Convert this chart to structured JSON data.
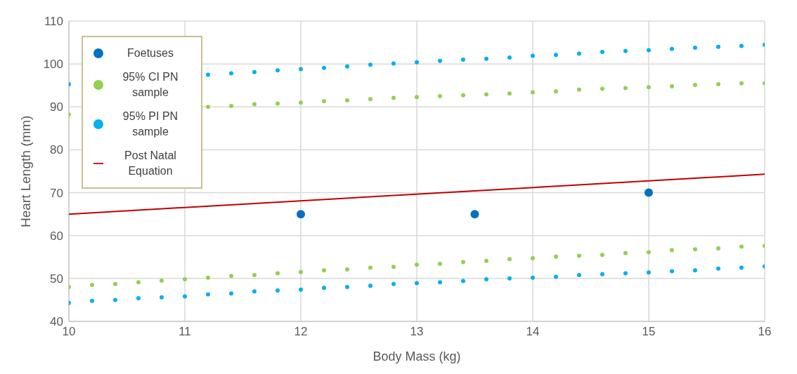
{
  "chart_data": {
    "type": "scatter",
    "xlabel": "Body Mass (kg)",
    "ylabel": "Heart Length (mm)",
    "xlim": [
      10,
      16
    ],
    "xticks": [
      10,
      11,
      12,
      13,
      14,
      15,
      16
    ],
    "ylim": [
      40,
      110
    ],
    "yticks": [
      40,
      50,
      60,
      70,
      80,
      90,
      100,
      110
    ],
    "grid": true,
    "legend": "top left",
    "marker": "circle",
    "series": [
      {
        "name": "Foetuses",
        "color": "#0070c0",
        "x": [
          12,
          13.5,
          15
        ],
        "values": [
          65,
          65,
          70
        ]
      },
      {
        "name": "95% CI PN sample",
        "color": "#92d050",
        "x": [
          10,
          10.2,
          10.4,
          10.6,
          10.8,
          11,
          11.2,
          11.4,
          11.6,
          11.8,
          12,
          12.2,
          12.4,
          12.6,
          12.8,
          13,
          13.2,
          13.4,
          13.6,
          13.8,
          14,
          14.2,
          14.4,
          14.6,
          14.8,
          15,
          15.2,
          15.4,
          15.6,
          15.8,
          16
        ],
        "values": [
          88.2,
          null,
          null,
          null,
          null,
          null,
          90.0,
          90.2,
          90.6,
          90.8,
          91.0,
          91.3,
          91.5,
          91.8,
          92.1,
          92.3,
          92.5,
          92.7,
          92.9,
          93.1,
          93.4,
          93.6,
          94.0,
          94.2,
          94.4,
          94.6,
          94.8,
          95.1,
          95.3,
          95.5,
          95.5
        ]
      },
      {
        "color": "#92d050",
        "x": [
          10,
          10.2,
          10.4,
          10.6,
          10.8,
          11,
          11.2,
          11.4,
          11.6,
          11.8,
          12,
          12.2,
          12.4,
          12.6,
          12.8,
          13,
          13.2,
          13.4,
          13.6,
          13.8,
          14,
          14.2,
          14.4,
          14.6,
          14.8,
          15,
          15.2,
          15.4,
          15.6,
          15.8,
          16
        ],
        "values": [
          48.0,
          48.5,
          48.7,
          49.1,
          49.5,
          49.8,
          50.2,
          50.6,
          50.8,
          51.2,
          51.5,
          51.9,
          52.1,
          52.5,
          52.7,
          53.2,
          53.4,
          53.8,
          54.1,
          54.5,
          54.7,
          55.1,
          55.3,
          55.5,
          55.9,
          56.1,
          56.6,
          56.8,
          57.0,
          57.4,
          57.6
        ]
      },
      {
        "name": "95% PI PN sample",
        "color": "#00b0f0",
        "x": [
          10,
          10.2,
          10.4,
          10.6,
          10.8,
          11,
          11.2,
          11.4,
          11.6,
          11.8,
          12,
          12.2,
          12.4,
          12.6,
          12.8,
          13,
          13.2,
          13.4,
          13.6,
          13.8,
          14,
          14.2,
          14.4,
          14.6,
          14.8,
          15,
          15.2,
          15.4,
          15.6,
          15.8,
          16
        ],
        "values": [
          95.3,
          null,
          null,
          null,
          null,
          null,
          97.5,
          97.8,
          98.1,
          98.5,
          98.8,
          99.1,
          99.4,
          99.8,
          100.1,
          100.4,
          100.7,
          101.0,
          101.2,
          101.5,
          101.9,
          102.1,
          102.4,
          102.8,
          103.0,
          103.2,
          103.5,
          103.8,
          104.0,
          104.2,
          104.5
        ]
      },
      {
        "color": "#00b0f0",
        "x": [
          10,
          10.2,
          10.4,
          10.6,
          10.8,
          11,
          11.2,
          11.4,
          11.6,
          11.8,
          12,
          12.2,
          12.4,
          12.6,
          12.8,
          13,
          13.2,
          13.4,
          13.6,
          13.8,
          14,
          14.2,
          14.4,
          14.6,
          14.8,
          15,
          15.2,
          15.4,
          15.6,
          15.8,
          16
        ],
        "values": [
          44.3,
          44.8,
          45.0,
          45.4,
          45.6,
          45.8,
          46.3,
          46.5,
          47.0,
          47.2,
          47.4,
          47.8,
          48.0,
          48.3,
          48.7,
          48.9,
          49.1,
          49.4,
          49.8,
          50.0,
          50.2,
          50.4,
          50.8,
          51.0,
          51.2,
          51.4,
          51.7,
          51.9,
          52.3,
          52.5,
          52.8
        ]
      },
      {
        "name": "Post Natal Equation",
        "type": "line",
        "marker": "none",
        "color": "#c00000",
        "x": [
          10,
          16
        ],
        "values": [
          65,
          74.3
        ]
      }
    ]
  }
}
